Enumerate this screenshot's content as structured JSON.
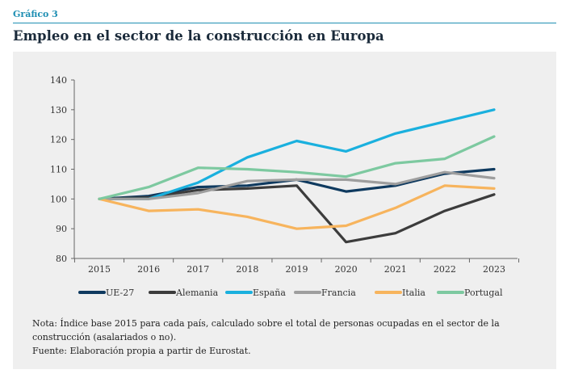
{
  "header": {
    "kicker": "Gráfico 3",
    "title": "Empleo en el sector de la construcción en Europa"
  },
  "notes": {
    "nota": "Nota: Índice base 2015 para cada país, calculado sobre el total de personas ocupadas en el sector de la construcción (asalariados o no).",
    "fuente": "Fuente: Elaboración propia a partir de Eurostat."
  },
  "chart_data": {
    "type": "line",
    "title": "",
    "xlabel": "",
    "ylabel": "",
    "x": [
      "2015",
      "2016",
      "2017",
      "2018",
      "2019",
      "2020",
      "2021",
      "2022",
      "2023"
    ],
    "ylim": [
      80,
      140
    ],
    "yticks": [
      80,
      90,
      100,
      110,
      120,
      130,
      140
    ],
    "grid": false,
    "legend_position": "bottom",
    "series": [
      {
        "name": "UE-27",
        "color": "#0f3a5f",
        "values": [
          100,
          101,
          104,
          104.5,
          106.5,
          102.5,
          104.5,
          108.5,
          110
        ]
      },
      {
        "name": "Alemania",
        "color": "#3c3c3c",
        "values": [
          100,
          100.5,
          103,
          103.5,
          104.5,
          85.5,
          88.5,
          96,
          101.5
        ]
      },
      {
        "name": "España",
        "color": "#1ab0de",
        "values": [
          100,
          100,
          105.5,
          114,
          119.5,
          116,
          122,
          126,
          130
        ]
      },
      {
        "name": "Francia",
        "color": "#9e9e9e",
        "values": [
          100,
          100,
          102,
          106,
          106.5,
          106.5,
          105,
          109,
          107
        ]
      },
      {
        "name": "Italia",
        "color": "#f7b45d",
        "values": [
          100,
          96,
          96.5,
          94,
          90,
          91,
          97,
          104.5,
          103.5
        ]
      },
      {
        "name": "Portugal",
        "color": "#7dc9a0",
        "values": [
          100,
          104,
          110.5,
          110,
          109,
          107.5,
          112,
          113.5,
          121
        ]
      }
    ]
  }
}
